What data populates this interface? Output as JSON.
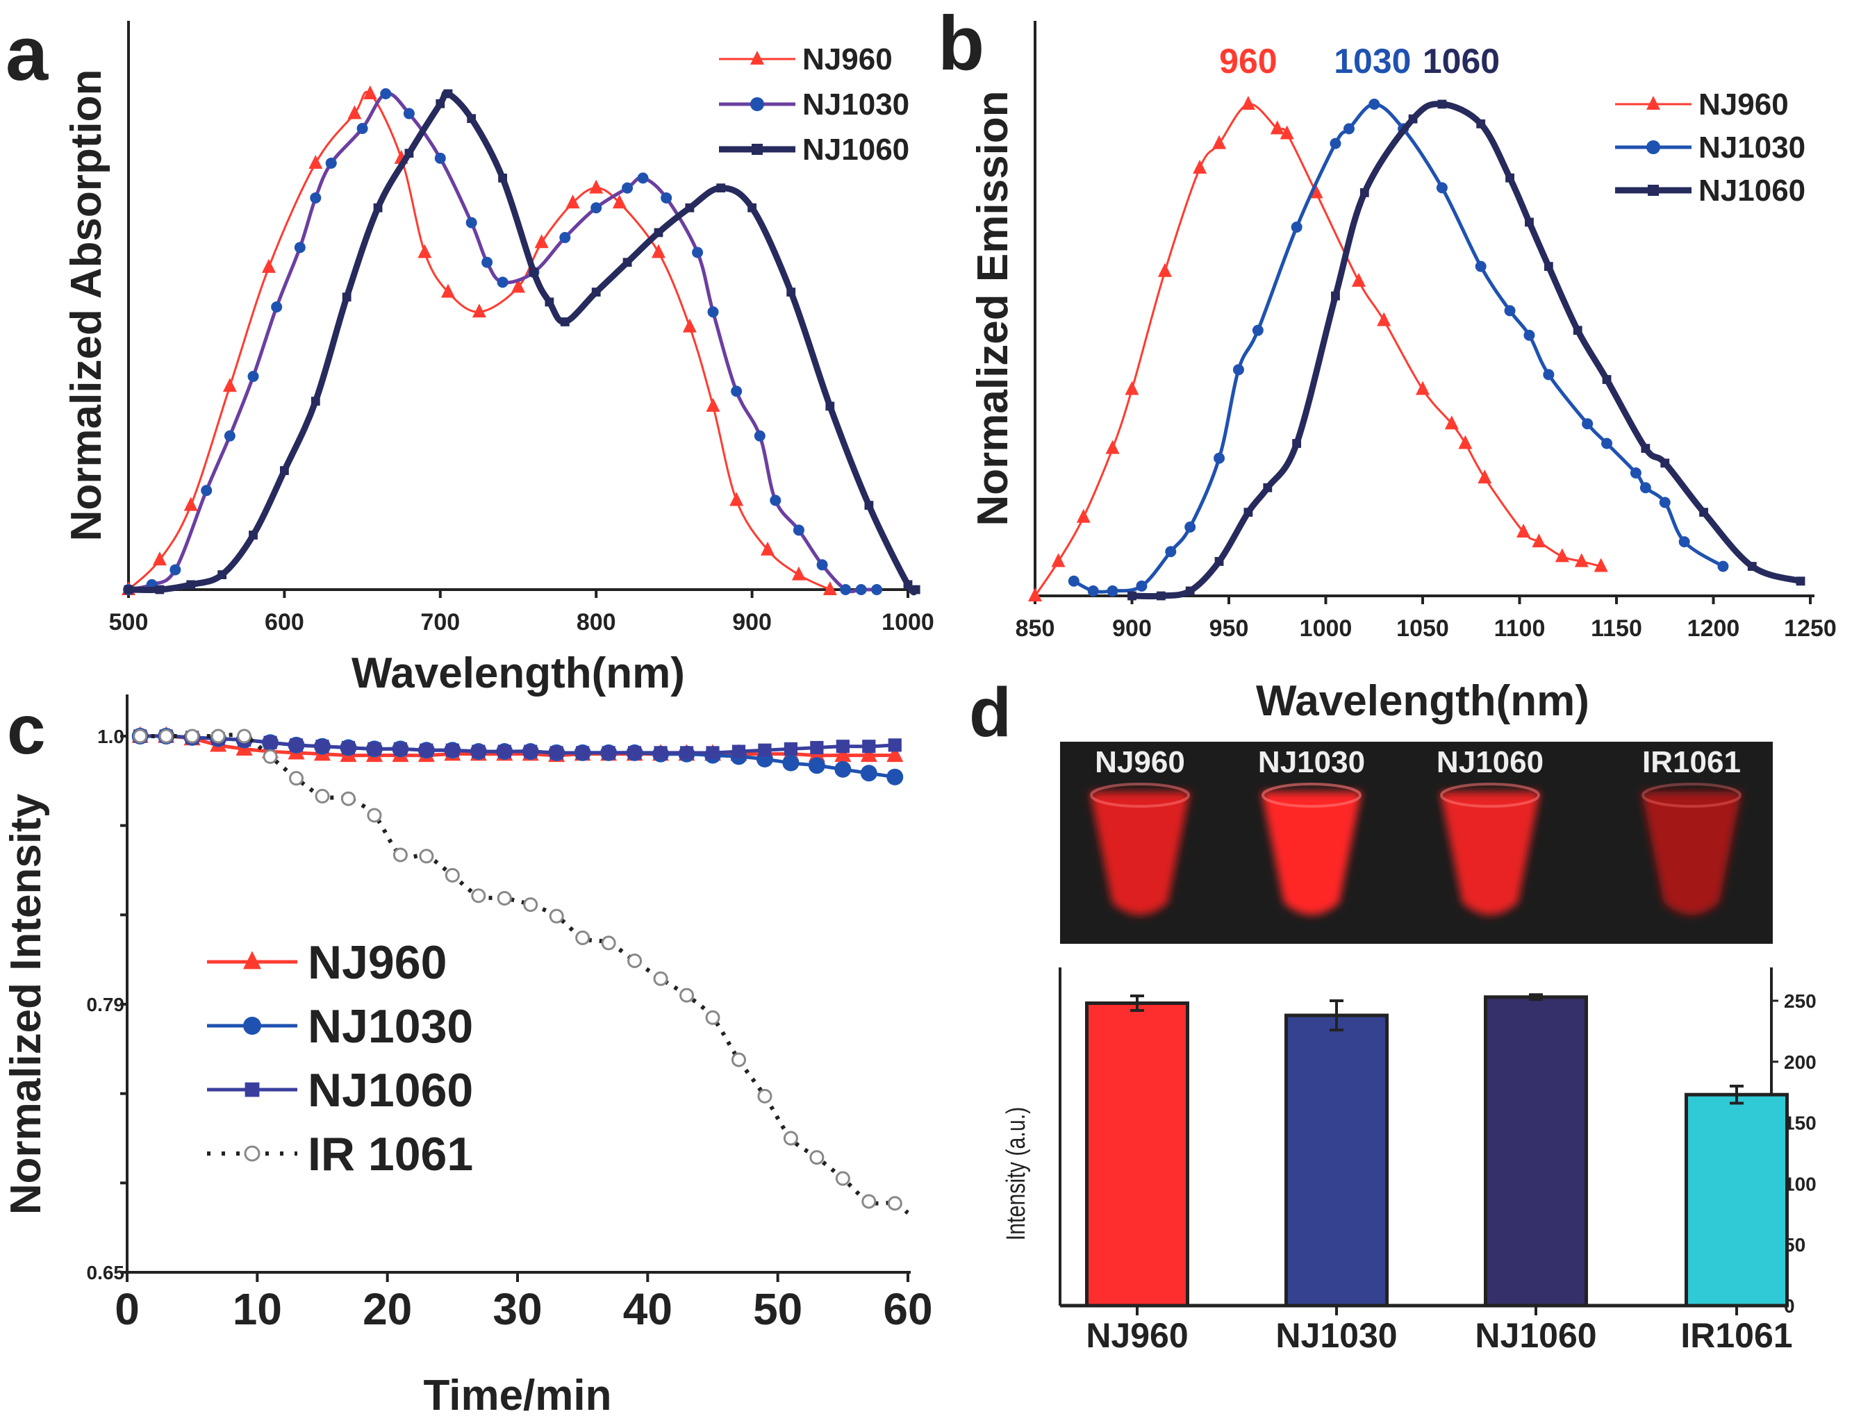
{
  "panels": {
    "a": "a",
    "b": "b",
    "c": "c",
    "d": "d"
  },
  "colors": {
    "NJ960": "#ff3b30",
    "NJ1030": "#1f52b0",
    "NJ1060": "#262a5c",
    "NJ1030_line_a": "#6b3fa0",
    "NJ1060_c": "#3a3f9e",
    "IR1061": "#222222"
  },
  "chart_data": [
    {
      "id": "a",
      "type": "line",
      "title": "",
      "xlabel": "Wavelength(nm)",
      "ylabel": "Normalized Absorption",
      "xlim": [
        500,
        1000
      ],
      "ylim": [
        0,
        1
      ],
      "xticks": [
        500,
        600,
        700,
        800,
        900,
        1000
      ],
      "legend": "top-right",
      "series": [
        {
          "name": "NJ960",
          "marker": "triangle",
          "x": [
            500,
            520,
            540,
            565,
            590,
            620,
            645,
            655,
            675,
            690,
            705,
            725,
            750,
            765,
            785,
            800,
            815,
            840,
            860,
            875,
            890,
            910,
            930,
            950
          ],
          "y": [
            0,
            0.06,
            0.17,
            0.41,
            0.65,
            0.86,
            0.96,
            1.0,
            0.87,
            0.68,
            0.6,
            0.56,
            0.61,
            0.7,
            0.78,
            0.81,
            0.78,
            0.68,
            0.53,
            0.37,
            0.18,
            0.08,
            0.03,
            0
          ]
        },
        {
          "name": "NJ1030",
          "marker": "circle",
          "x": [
            500,
            515,
            530,
            550,
            565,
            580,
            595,
            610,
            620,
            630,
            650,
            665,
            680,
            700,
            720,
            730,
            740,
            760,
            780,
            800,
            820,
            830,
            845,
            865,
            875,
            890,
            905,
            915,
            930,
            945,
            960,
            970,
            980
          ],
          "y": [
            0,
            0.01,
            0.04,
            0.2,
            0.31,
            0.43,
            0.57,
            0.69,
            0.79,
            0.86,
            0.93,
            1.0,
            0.96,
            0.87,
            0.74,
            0.66,
            0.62,
            0.64,
            0.71,
            0.77,
            0.81,
            0.83,
            0.79,
            0.68,
            0.56,
            0.4,
            0.31,
            0.18,
            0.12,
            0.05,
            0,
            0,
            0
          ]
        },
        {
          "name": "NJ1060",
          "marker": "square",
          "x": [
            500,
            520,
            540,
            560,
            580,
            600,
            620,
            640,
            660,
            680,
            700,
            705,
            720,
            740,
            760,
            770,
            780,
            800,
            820,
            840,
            860,
            880,
            900,
            925,
            950,
            975,
            1000,
            1005
          ],
          "y": [
            0,
            0,
            0.01,
            0.03,
            0.11,
            0.24,
            0.38,
            0.59,
            0.77,
            0.88,
            0.98,
            1.0,
            0.95,
            0.83,
            0.64,
            0.58,
            0.54,
            0.6,
            0.66,
            0.72,
            0.77,
            0.81,
            0.77,
            0.6,
            0.37,
            0.17,
            0.01,
            0
          ]
        }
      ]
    },
    {
      "id": "b",
      "type": "line",
      "title": "",
      "xlabel": "Wavelength(nm)",
      "ylabel": "Normalized Emission",
      "xlim": [
        850,
        1250
      ],
      "ylim": [
        0,
        1
      ],
      "xticks": [
        850,
        900,
        950,
        1000,
        1050,
        1100,
        1150,
        1200,
        1250
      ],
      "legend": "top-right",
      "annotations": [
        "960",
        "1030",
        "1060"
      ],
      "series": [
        {
          "name": "NJ960",
          "marker": "triangle",
          "x": [
            850,
            862,
            875,
            890,
            900,
            917,
            935,
            945,
            960,
            975,
            980,
            995,
            1017,
            1030,
            1050,
            1065,
            1072,
            1082,
            1102,
            1110,
            1122,
            1132,
            1142
          ],
          "y": [
            0,
            0.07,
            0.16,
            0.3,
            0.42,
            0.66,
            0.87,
            0.92,
            1.0,
            0.95,
            0.94,
            0.82,
            0.64,
            0.56,
            0.42,
            0.35,
            0.31,
            0.24,
            0.13,
            0.11,
            0.08,
            0.07,
            0.06
          ]
        },
        {
          "name": "NJ1030",
          "marker": "circle",
          "x": [
            870,
            880,
            890,
            905,
            920,
            930,
            945,
            955,
            965,
            985,
            1005,
            1012,
            1025,
            1040,
            1060,
            1080,
            1095,
            1105,
            1115,
            1135,
            1145,
            1160,
            1165,
            1175,
            1185,
            1205
          ],
          "y": [
            0.03,
            0.01,
            0.01,
            0.02,
            0.09,
            0.14,
            0.28,
            0.46,
            0.54,
            0.75,
            0.92,
            0.95,
            1.0,
            0.95,
            0.83,
            0.67,
            0.58,
            0.53,
            0.45,
            0.35,
            0.31,
            0.25,
            0.22,
            0.19,
            0.11,
            0.06
          ]
        },
        {
          "name": "NJ1060",
          "marker": "square",
          "x": [
            900,
            915,
            930,
            945,
            960,
            970,
            985,
            1005,
            1020,
            1045,
            1060,
            1080,
            1095,
            1105,
            1115,
            1130,
            1145,
            1165,
            1175,
            1195,
            1220,
            1245
          ],
          "y": [
            0,
            0,
            0.01,
            0.07,
            0.17,
            0.22,
            0.31,
            0.61,
            0.82,
            0.97,
            1.0,
            0.96,
            0.85,
            0.76,
            0.67,
            0.54,
            0.44,
            0.3,
            0.27,
            0.17,
            0.06,
            0.03
          ]
        }
      ]
    },
    {
      "id": "c",
      "type": "line",
      "title": "",
      "xlabel": "Time/min",
      "ylabel": "Normalized Intensity",
      "xlim": [
        0,
        60
      ],
      "ylim": [
        0.65,
        1.0
      ],
      "xticks": [
        0,
        10,
        20,
        30,
        40,
        50,
        60
      ],
      "ytick_labels": [
        "1.0",
        "0.79",
        "0.65"
      ],
      "legend": "center-left",
      "series": [
        {
          "name": "NJ960",
          "marker": "triangle",
          "x": [
            1,
            3,
            5,
            7,
            9,
            11,
            13,
            15,
            17,
            19,
            21,
            23,
            25,
            27,
            29,
            31,
            33,
            35,
            37,
            39,
            41,
            43,
            45,
            47,
            49,
            51,
            53,
            55,
            57,
            59
          ],
          "y": [
            1.0,
            1.0,
            0.998,
            0.993,
            0.99,
            0.988,
            0.987,
            0.986,
            0.985,
            0.985,
            0.985,
            0.985,
            0.986,
            0.986,
            0.986,
            0.986,
            0.985,
            0.986,
            0.986,
            0.986,
            0.986,
            0.986,
            0.986,
            0.986,
            0.986,
            0.986,
            0.985,
            0.985,
            0.985,
            0.985
          ]
        },
        {
          "name": "NJ1030",
          "marker": "circle",
          "x": [
            1,
            3,
            5,
            7,
            9,
            11,
            13,
            15,
            17,
            19,
            21,
            23,
            25,
            27,
            29,
            31,
            33,
            35,
            37,
            39,
            41,
            43,
            45,
            47,
            49,
            51,
            53,
            55,
            57,
            59
          ],
          "y": [
            1.0,
            1.0,
            0.999,
            0.998,
            0.997,
            0.995,
            0.993,
            0.992,
            0.991,
            0.99,
            0.99,
            0.989,
            0.989,
            0.988,
            0.988,
            0.988,
            0.987,
            0.987,
            0.987,
            0.987,
            0.986,
            0.986,
            0.985,
            0.984,
            0.982,
            0.979,
            0.977,
            0.974,
            0.971,
            0.968
          ]
        },
        {
          "name": "NJ1060",
          "marker": "square",
          "x": [
            1,
            3,
            5,
            7,
            9,
            11,
            13,
            15,
            17,
            19,
            21,
            23,
            25,
            27,
            29,
            31,
            33,
            35,
            37,
            39,
            41,
            43,
            45,
            47,
            49,
            51,
            53,
            55,
            57,
            59
          ],
          "y": [
            1.0,
            1.0,
            0.999,
            0.998,
            0.997,
            0.995,
            0.993,
            0.992,
            0.991,
            0.99,
            0.99,
            0.989,
            0.989,
            0.988,
            0.988,
            0.988,
            0.987,
            0.987,
            0.987,
            0.987,
            0.987,
            0.987,
            0.987,
            0.988,
            0.989,
            0.99,
            0.991,
            0.992,
            0.992,
            0.993
          ]
        },
        {
          "name": "IR 1061",
          "marker": "open-circle",
          "x": [
            1,
            3,
            5,
            7,
            9,
            11,
            13,
            15,
            17,
            19,
            21,
            23,
            25,
            27,
            29,
            31,
            33,
            35,
            37,
            39,
            41,
            43,
            45,
            47,
            49,
            51,
            53,
            55,
            57,
            59,
            60
          ],
          "y": [
            1.0,
            1.0,
            1.0,
            1.0,
            1.0,
            0.984,
            0.967,
            0.953,
            0.951,
            0.938,
            0.907,
            0.906,
            0.891,
            0.875,
            0.873,
            0.868,
            0.859,
            0.842,
            0.838,
            0.824,
            0.81,
            0.797,
            0.783,
            0.761,
            0.742,
            0.72,
            0.71,
            0.699,
            0.687,
            0.686,
            0.681
          ]
        }
      ]
    },
    {
      "id": "d",
      "type": "bar",
      "title": "",
      "xlabel": "",
      "ylabel": "Intensity (a.u.)",
      "ylim": [
        0,
        275
      ],
      "yticks": [
        0,
        50,
        100,
        150,
        200,
        250
      ],
      "categories": [
        "NJ960",
        "NJ1030",
        "NJ1060",
        "IR1061"
      ],
      "values": [
        248,
        238,
        253,
        173
      ],
      "errors": [
        6,
        12,
        2,
        7
      ],
      "bar_colors": [
        "#ff2e2e",
        "#344290",
        "#35306a",
        "#30c9d6"
      ],
      "image_labels": [
        "NJ960",
        "NJ1030",
        "NJ1060",
        "IR1061"
      ],
      "image_brightness": [
        0.85,
        1.0,
        0.9,
        0.6
      ]
    }
  ]
}
